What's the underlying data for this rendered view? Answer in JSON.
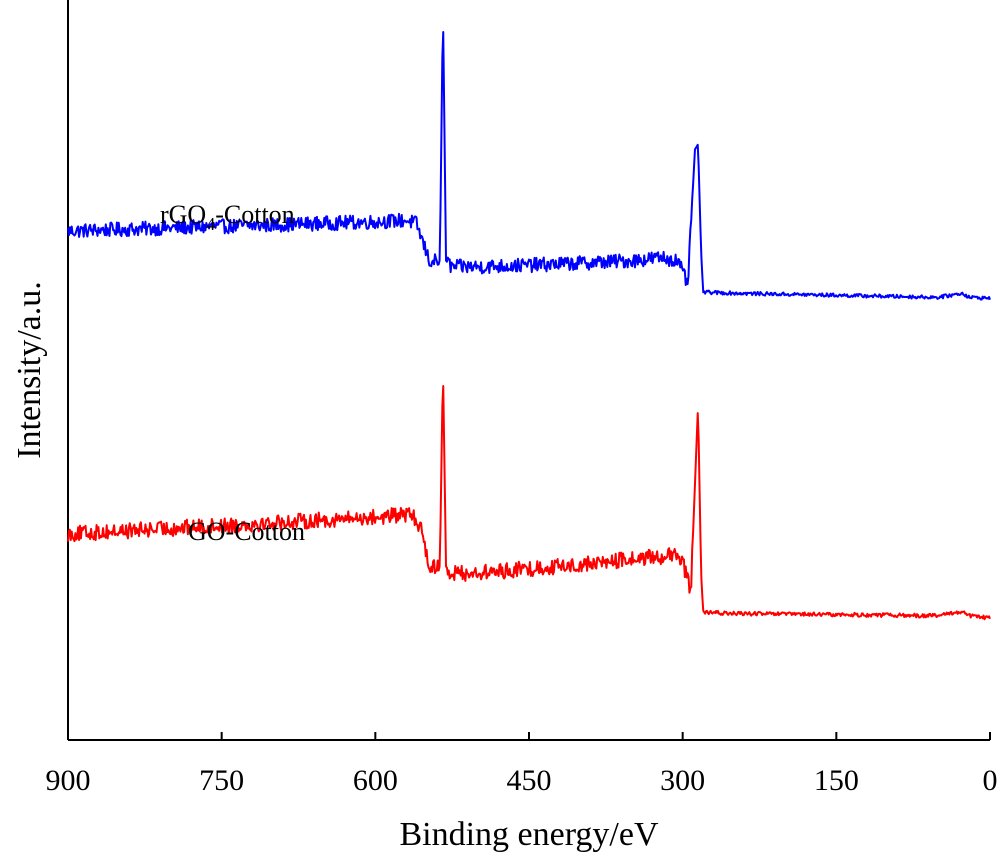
{
  "chart_data": {
    "type": "line",
    "xlabel": "Binding energy/eV",
    "ylabel": "Intensity/a.u.",
    "xlim": [
      900,
      0
    ],
    "x_reversed": true,
    "xticks": [
      900,
      750,
      600,
      450,
      300,
      150,
      0
    ],
    "yticks_shown": false,
    "grid": false,
    "series": [
      {
        "name": "rGO4-Cotton",
        "label_main": "rGO",
        "label_sub": "4",
        "label_tail": "-Cotton",
        "color": "#0000ff",
        "points": [
          [
            900,
            1.0
          ],
          [
            850,
            1.03
          ],
          [
            800,
            1.06
          ],
          [
            750,
            1.09
          ],
          [
            700,
            1.12
          ],
          [
            650,
            1.15
          ],
          [
            600,
            1.18
          ],
          [
            570,
            1.21
          ],
          [
            560,
            1.15
          ],
          [
            547,
            0.4
          ],
          [
            537,
            0.42
          ],
          [
            534,
            5.4
          ],
          [
            531,
            0.42
          ],
          [
            526,
            0.3
          ],
          [
            500,
            0.3
          ],
          [
            450,
            0.33
          ],
          [
            400,
            0.37
          ],
          [
            350,
            0.42
          ],
          [
            320,
            0.48
          ],
          [
            305,
            0.42
          ],
          [
            295,
            -0.05
          ],
          [
            288,
            2.6
          ],
          [
            285,
            2.7
          ],
          [
            282,
            0.6
          ],
          [
            280,
            -0.2
          ],
          [
            250,
            -0.22
          ],
          [
            200,
            -0.24
          ],
          [
            150,
            -0.26
          ],
          [
            100,
            -0.28
          ],
          [
            50,
            -0.3
          ],
          [
            27,
            -0.22
          ],
          [
            20,
            -0.3
          ],
          [
            0,
            -0.32
          ]
        ]
      },
      {
        "name": "GO-Cotton",
        "label_main": "GO-Cotton",
        "color": "#ff0000",
        "points": [
          [
            900,
            1.0
          ],
          [
            850,
            1.05
          ],
          [
            800,
            1.1
          ],
          [
            750,
            1.15
          ],
          [
            700,
            1.2
          ],
          [
            650,
            1.25
          ],
          [
            600,
            1.3
          ],
          [
            565,
            1.35
          ],
          [
            555,
            1.1
          ],
          [
            547,
            0.4
          ],
          [
            537,
            0.42
          ],
          [
            534,
            4.0
          ],
          [
            531,
            0.42
          ],
          [
            526,
            0.3
          ],
          [
            500,
            0.3
          ],
          [
            450,
            0.38
          ],
          [
            400,
            0.45
          ],
          [
            350,
            0.55
          ],
          [
            310,
            0.62
          ],
          [
            300,
            0.5
          ],
          [
            292,
            0.0
          ],
          [
            285,
            3.3
          ],
          [
            282,
            0.3
          ],
          [
            280,
            -0.4
          ],
          [
            250,
            -0.42
          ],
          [
            200,
            -0.43
          ],
          [
            150,
            -0.44
          ],
          [
            100,
            -0.45
          ],
          [
            50,
            -0.46
          ],
          [
            27,
            -0.38
          ],
          [
            20,
            -0.46
          ],
          [
            0,
            -0.5
          ]
        ]
      }
    ]
  }
}
